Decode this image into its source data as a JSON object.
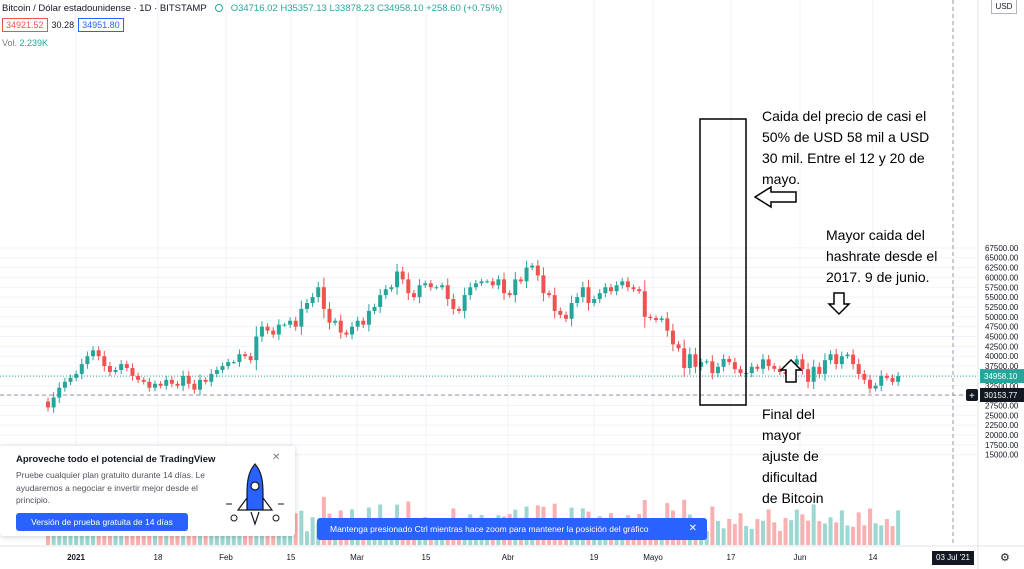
{
  "header": {
    "symbol": "Bitcoin / Dólar estadounidense · 1D · BITSTAMP",
    "ohlc": "O34716.02 H35357.13 L33878.23 C34958.10 +258.60 (+0.75%)",
    "sell_price": "34921.52",
    "spread": "30.28",
    "buy_price": "34951.80",
    "volume_label": "Vol.",
    "volume_value": "2.239K"
  },
  "axis": {
    "currency": "USD",
    "price_ticks": [
      "67500.00",
      "65000.00",
      "62500.00",
      "60000.00",
      "57500.00",
      "55000.00",
      "52500.00",
      "50000.00",
      "47500.00",
      "45000.00",
      "42500.00",
      "40000.00",
      "37500.00",
      "35000.00",
      "32500.00",
      "30000.00",
      "27500.00",
      "25000.00",
      "22500.00",
      "20000.00",
      "17500.00",
      "15000.00"
    ],
    "current_price_label": "34958.10",
    "crosshair_price_label": "30153.77",
    "date_ticks": [
      "2021",
      "18",
      "Feb",
      "15",
      "Mar",
      "15",
      "Abr",
      "19",
      "Mayo",
      "17",
      "Jun",
      "14"
    ],
    "crosshair_date": "03 Jul '21"
  },
  "annotations": {
    "price_drop": [
      "Caida del precio de casi el",
      "50% de USD 58 mil a USD",
      "30 mil. Entre el 12 y 20 de",
      "mayo."
    ],
    "hashrate": [
      "Mayor caida del",
      "hashrate desde el",
      "2017. 9 de junio."
    ],
    "difficulty": [
      "Final del",
      "mayor",
      "ajuste de",
      "dificultad",
      "de Bitcoin"
    ]
  },
  "promo": {
    "title": "Aproveche todo el potencial de TradingView",
    "body": "Pruebe cualquier plan gratuito durante 14 días. Le ayudaremos a negociar e invertir mejor desde el principio.",
    "button": "Versión de prueba gratuita de 14 días",
    "close": "✕"
  },
  "toast": {
    "text": "Mantenga presionado Ctrl mientras hace zoom para mantener la posición del gráfico",
    "close": "✕"
  },
  "colors": {
    "up": "#26a69a",
    "down": "#ef5350",
    "accent": "#2962ff"
  },
  "chart_data": {
    "type": "candlestick",
    "title": "Bitcoin / Dólar estadounidense · 1D · BITSTAMP",
    "x_start": "2020-12-28",
    "ylim": [
      15000,
      70000
    ],
    "closes": [
      27000,
      29500,
      32000,
      33500,
      34500,
      35500,
      38000,
      40000,
      41500,
      40000,
      37500,
      36000,
      36500,
      38000,
      37000,
      35000,
      34000,
      33500,
      32000,
      33000,
      32500,
      34000,
      33000,
      32500,
      35000,
      33000,
      31500,
      34000,
      33500,
      35500,
      36500,
      37500,
      38500,
      38500,
      40500,
      40000,
      39000,
      45000,
      47500,
      46500,
      45500,
      48000,
      48000,
      49000,
      47500,
      52000,
      53500,
      55000,
      57500,
      52000,
      48500,
      49000,
      46000,
      45500,
      47500,
      49000,
      48000,
      51500,
      52500,
      55500,
      57000,
      57500,
      61500,
      59500,
      56000,
      55000,
      58000,
      58500,
      57500,
      57500,
      58000,
      54500,
      52000,
      51500,
      55500,
      57500,
      58500,
      59000,
      59000,
      58000,
      59500,
      56000,
      55500,
      59500,
      59000,
      62500,
      63000,
      60500,
      56000,
      55500,
      51500,
      50500,
      49500,
      53500,
      55000,
      57500,
      53500,
      54500,
      56000,
      57500,
      56500,
      58000,
      59000,
      57500,
      57000,
      56500,
      50000,
      49700,
      49200,
      49600,
      46500,
      43000,
      42000,
      37000,
      40500,
      37300,
      38500,
      38700,
      35700,
      37300,
      39300,
      38500,
      36700,
      35700,
      35700,
      37300,
      36800,
      39200,
      37500,
      36800,
      36000,
      35500,
      37800,
      39200,
      36700,
      33500,
      37300,
      35500,
      39000,
      40500,
      38000,
      40000,
      40400,
      38000,
      35500,
      34000,
      31800,
      32500,
      35000,
      34500,
      33500,
      34958.1
    ]
  }
}
